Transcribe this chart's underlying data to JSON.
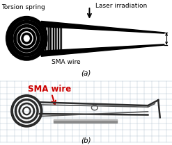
{
  "fig_width": 2.47,
  "fig_height": 2.09,
  "dpi": 100,
  "bg_color": "#ffffff",
  "panel_a_label": "(a)",
  "panel_b_label": "(b)",
  "label_torsion_spring": "Torsion spring",
  "label_laser": "Laser irradiation",
  "label_sma_wire_a": "SMA wire",
  "label_sma_wire_b": "SMA wire",
  "label_fontsize": 6.5,
  "panel_label_fontsize": 7.5,
  "line_color": "#000000",
  "red_color": "#cc0000",
  "photo_bg_color": "#cdd8e0",
  "grid_color": "#a8b8c8",
  "tweezers_color": "#2a2a2a",
  "tweezers_color2": "#555555"
}
